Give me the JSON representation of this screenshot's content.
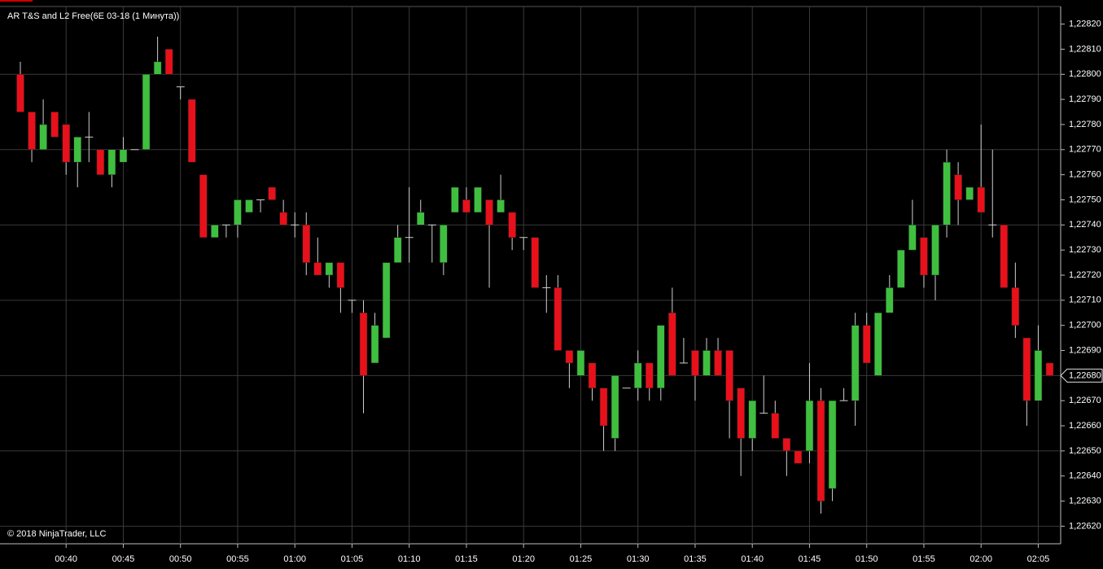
{
  "chart_data": {
    "type": "candlestick",
    "title": "AR T&S and L2 Free(6E 03-18 (1 Минута))",
    "footer": "© 2018 NinjaTrader, LLC",
    "up_color": "#3fbf3f",
    "down_color": "#e8101a",
    "wick_color": "#cfcfcf",
    "x": [
      "00:36",
      "00:37",
      "00:38",
      "00:39",
      "00:40",
      "00:41",
      "00:42",
      "00:43",
      "00:44",
      "00:45",
      "00:46",
      "00:47",
      "00:48",
      "00:49",
      "00:50",
      "00:51",
      "00:52",
      "00:53",
      "00:54",
      "00:55",
      "00:56",
      "00:57",
      "00:58",
      "00:59",
      "01:00",
      "01:01",
      "01:02",
      "01:03",
      "01:04",
      "01:05",
      "01:06",
      "01:07",
      "01:08",
      "01:09",
      "01:10",
      "01:11",
      "01:12",
      "01:13",
      "01:14",
      "01:15",
      "01:16",
      "01:17",
      "01:18",
      "01:19",
      "01:20",
      "01:21",
      "01:22",
      "01:23",
      "01:24",
      "01:25",
      "01:26",
      "01:27",
      "01:28",
      "01:29",
      "01:30",
      "01:31",
      "01:32",
      "01:33",
      "01:34",
      "01:35",
      "01:36",
      "01:37",
      "01:38",
      "01:39",
      "01:40",
      "01:41",
      "01:42",
      "01:43",
      "01:44",
      "01:45",
      "01:46",
      "01:47",
      "01:48",
      "01:49",
      "01:50",
      "01:51",
      "01:52",
      "01:53",
      "01:54",
      "01:55",
      "01:56",
      "01:57",
      "01:58",
      "01:59",
      "02:00",
      "02:01",
      "02:02",
      "02:03",
      "02:04",
      "02:05",
      "02:06"
    ],
    "open": [
      1.228,
      1.22785,
      1.2277,
      1.22785,
      1.2278,
      1.22765,
      1.22775,
      1.2277,
      1.2276,
      1.22765,
      1.2277,
      1.2277,
      1.228,
      1.2281,
      1.22795,
      1.2279,
      1.2276,
      1.22735,
      1.2274,
      1.2274,
      1.22745,
      1.2275,
      1.22755,
      1.22745,
      1.2274,
      1.2274,
      1.22725,
      1.2272,
      1.22725,
      1.2271,
      1.22705,
      1.22685,
      1.22695,
      1.22725,
      1.22735,
      1.2274,
      1.2274,
      1.22725,
      1.22745,
      1.2275,
      1.22745,
      1.2275,
      1.22745,
      1.22745,
      1.22735,
      1.22735,
      1.22715,
      1.22715,
      1.2269,
      1.2268,
      1.22685,
      1.22675,
      1.22655,
      1.22675,
      1.22675,
      1.22685,
      1.22675,
      1.22705,
      1.22685,
      1.2269,
      1.2268,
      1.2269,
      1.2269,
      1.22675,
      1.22655,
      1.22665,
      1.22665,
      1.22655,
      1.2265,
      1.2265,
      1.2267,
      1.22635,
      1.2267,
      1.2267,
      1.227,
      1.2268,
      1.22705,
      1.22715,
      1.2273,
      1.22735,
      1.2272,
      1.2274,
      1.2276,
      1.2275,
      1.22755,
      1.2274,
      1.2274,
      1.22715,
      1.22695,
      1.2267,
      1.22685
    ],
    "high": [
      1.22805,
      1.22785,
      1.2279,
      1.22785,
      1.2278,
      1.22775,
      1.22785,
      1.2277,
      1.2277,
      1.22775,
      1.2277,
      1.228,
      1.22815,
      1.2281,
      1.22795,
      1.2279,
      1.2276,
      1.2274,
      1.2274,
      1.2275,
      1.2275,
      1.2275,
      1.22755,
      1.2275,
      1.22745,
      1.22745,
      1.22735,
      1.22725,
      1.22725,
      1.2271,
      1.2271,
      1.22705,
      1.22725,
      1.2274,
      1.22755,
      1.2275,
      1.2274,
      1.2274,
      1.22755,
      1.22755,
      1.22755,
      1.2275,
      1.2276,
      1.22745,
      1.22735,
      1.22735,
      1.2272,
      1.2272,
      1.2269,
      1.2269,
      1.22685,
      1.22675,
      1.2268,
      1.22675,
      1.2269,
      1.22685,
      1.227,
      1.22715,
      1.22695,
      1.2269,
      1.22695,
      1.22695,
      1.2269,
      1.22675,
      1.2267,
      1.2268,
      1.2267,
      1.22655,
      1.2265,
      1.22685,
      1.22675,
      1.2267,
      1.22675,
      1.22705,
      1.22705,
      1.22705,
      1.2272,
      1.2273,
      1.2275,
      1.22735,
      1.2274,
      1.2277,
      1.22765,
      1.22755,
      1.2278,
      1.2277,
      1.2274,
      1.22725,
      1.22695,
      1.227,
      1.22685
    ],
    "low": [
      1.22785,
      1.22765,
      1.2277,
      1.22775,
      1.2276,
      1.22755,
      1.22765,
      1.2276,
      1.22755,
      1.22765,
      1.2277,
      1.2277,
      1.228,
      1.228,
      1.2279,
      1.22765,
      1.22735,
      1.22735,
      1.22735,
      1.22735,
      1.22745,
      1.22745,
      1.2275,
      1.2274,
      1.22735,
      1.2272,
      1.2272,
      1.22715,
      1.22705,
      1.22705,
      1.22665,
      1.22685,
      1.22695,
      1.22725,
      1.22725,
      1.2274,
      1.22725,
      1.2272,
      1.22745,
      1.22745,
      1.22745,
      1.22715,
      1.22745,
      1.2273,
      1.2273,
      1.22715,
      1.22705,
      1.2269,
      1.22675,
      1.2268,
      1.2267,
      1.2265,
      1.2265,
      1.22675,
      1.2267,
      1.2267,
      1.2267,
      1.2268,
      1.22685,
      1.2267,
      1.2268,
      1.2268,
      1.22655,
      1.2264,
      1.2265,
      1.22665,
      1.22655,
      1.2264,
      1.22645,
      1.22645,
      1.22625,
      1.2263,
      1.2267,
      1.2266,
      1.22685,
      1.2268,
      1.22705,
      1.22715,
      1.2273,
      1.22715,
      1.2271,
      1.22735,
      1.2274,
      1.2275,
      1.22745,
      1.22735,
      1.22715,
      1.22695,
      1.2266,
      1.2267,
      1.2268
    ],
    "close": [
      1.22785,
      1.2277,
      1.2278,
      1.22775,
      1.22765,
      1.22775,
      1.22775,
      1.2276,
      1.2277,
      1.2277,
      1.2277,
      1.228,
      1.22805,
      1.228,
      1.22795,
      1.22765,
      1.22735,
      1.2274,
      1.2274,
      1.2275,
      1.2275,
      1.2275,
      1.2275,
      1.2274,
      1.2274,
      1.22725,
      1.2272,
      1.22725,
      1.22715,
      1.2271,
      1.2268,
      1.227,
      1.22725,
      1.22735,
      1.22735,
      1.22745,
      1.2274,
      1.2274,
      1.22755,
      1.22745,
      1.22755,
      1.2274,
      1.2275,
      1.22735,
      1.22735,
      1.22715,
      1.22715,
      1.2269,
      1.22685,
      1.2269,
      1.22675,
      1.2266,
      1.2268,
      1.22675,
      1.22685,
      1.22675,
      1.227,
      1.2268,
      1.22685,
      1.2268,
      1.2269,
      1.2268,
      1.2267,
      1.22655,
      1.2267,
      1.22665,
      1.22655,
      1.2265,
      1.22645,
      1.2267,
      1.2263,
      1.2267,
      1.2267,
      1.227,
      1.22685,
      1.22705,
      1.22715,
      1.2273,
      1.2274,
      1.2272,
      1.2274,
      1.22765,
      1.2275,
      1.22755,
      1.22745,
      1.2274,
      1.22715,
      1.227,
      1.2267,
      1.2269,
      1.2268
    ],
    "xticks": [
      "00:40",
      "00:45",
      "00:50",
      "00:55",
      "01:00",
      "01:05",
      "01:10",
      "01:15",
      "01:20",
      "01:25",
      "01:30",
      "01:35",
      "01:40",
      "01:45",
      "01:50",
      "01:55",
      "02:00",
      "02:05"
    ],
    "ylim": [
      1.22613,
      1.22827
    ],
    "yticks": [
      {
        "value": 1.2282,
        "label": "1,22820"
      },
      {
        "value": 1.2281,
        "label": "1,22810"
      },
      {
        "value": 1.228,
        "label": "1,22800"
      },
      {
        "value": 1.2279,
        "label": "1,22790"
      },
      {
        "value": 1.2278,
        "label": "1,22780"
      },
      {
        "value": 1.2277,
        "label": "1,22770"
      },
      {
        "value": 1.2276,
        "label": "1,22760"
      },
      {
        "value": 1.2275,
        "label": "1,22750"
      },
      {
        "value": 1.2274,
        "label": "1,22740"
      },
      {
        "value": 1.2273,
        "label": "1,22730"
      },
      {
        "value": 1.2272,
        "label": "1,22720"
      },
      {
        "value": 1.2271,
        "label": "1,22710"
      },
      {
        "value": 1.227,
        "label": "1,22700"
      },
      {
        "value": 1.2269,
        "label": "1,22690"
      },
      {
        "value": 1.2267,
        "label": "1,22670"
      },
      {
        "value": 1.2266,
        "label": "1,22660"
      },
      {
        "value": 1.2265,
        "label": "1,22650"
      },
      {
        "value": 1.2264,
        "label": "1,22640"
      },
      {
        "value": 1.2263,
        "label": "1,22630"
      },
      {
        "value": 1.2262,
        "label": "1,22620"
      }
    ],
    "ygrid": [
      1.228,
      1.2277,
      1.2274,
      1.2271,
      1.2268,
      1.2265,
      1.2262
    ],
    "last_price": {
      "value": 1.2268,
      "label": "1,22680"
    }
  }
}
